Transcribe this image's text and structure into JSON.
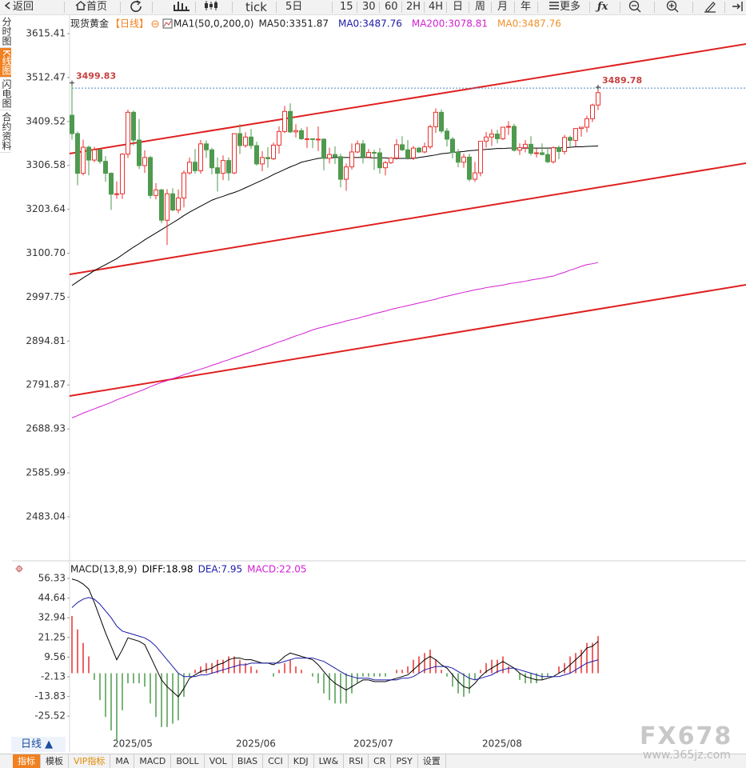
{
  "toolbar": {
    "items": [
      "返回",
      "首页",
      "tick",
      "5日",
      "15",
      "30",
      "60",
      "2H",
      "4H",
      "日",
      "周",
      "月",
      "年",
      "更多",
      "ƒx"
    ]
  },
  "sidebar": {
    "tabs": [
      "分时图",
      "K线图",
      "闪电图",
      "合约资料"
    ]
  },
  "chart_data": [
    {
      "type": "candlestick",
      "title": "现货黄金",
      "period": "【日线】",
      "indicator": "MA1(50,0,200,0)",
      "up_color": "#e8312f",
      "down_color": "#4e9a4e",
      "categories": [
        null,
        null,
        null,
        null,
        null,
        null,
        null,
        "2025/05",
        null,
        null,
        null,
        null,
        null,
        null,
        null,
        null,
        null,
        null,
        null,
        null,
        null,
        null,
        null,
        null,
        null,
        null,
        null,
        null,
        null,
        "2025/06",
        null,
        null,
        null,
        null,
        null,
        null,
        null,
        null,
        null,
        null,
        null,
        null,
        null,
        null,
        null,
        null,
        null,
        null,
        null,
        null,
        "2025/07",
        null,
        null,
        null,
        null,
        null,
        null,
        null,
        null,
        null,
        null,
        null,
        null,
        null,
        null,
        null,
        null,
        null,
        null,
        null,
        null,
        null,
        null,
        "2025/08",
        null,
        null,
        null,
        null,
        null,
        null,
        null,
        null,
        null,
        null,
        null,
        null,
        null,
        null,
        null,
        null,
        null,
        null,
        null,
        null,
        null
      ],
      "open": [
        3424,
        3381,
        3288,
        3349,
        3319,
        3343,
        3316,
        3288,
        3239,
        3240,
        3333,
        3431,
        3366,
        3306,
        3325,
        3236,
        3249,
        3178,
        3240,
        3202,
        3230,
        3289,
        3314,
        3294,
        3357,
        3343,
        3301,
        3288,
        3318,
        3289,
        3381,
        3353,
        3373,
        3353,
        3310,
        3325,
        3322,
        3354,
        3386,
        3433,
        3385,
        3388,
        3369,
        3369,
        3368,
        3368,
        3323,
        3332,
        3327,
        3274,
        3303,
        3338,
        3357,
        3326,
        3337,
        3336,
        3301,
        3313,
        3324,
        3355,
        3343,
        3324,
        3347,
        3338,
        3350,
        3397,
        3431,
        3387,
        3368,
        3337,
        3314,
        3326,
        3274,
        3289,
        3363,
        3373,
        3380,
        3369,
        3396,
        3398,
        3342,
        3348,
        3356,
        3335,
        3336,
        3332,
        3315,
        3348,
        3339,
        3372,
        3365,
        3393,
        3396,
        3416,
        3448
      ],
      "high": [
        3499.83,
        3386,
        3367,
        3353,
        3350,
        3345,
        3328,
        3290,
        3269,
        3335,
        3437,
        3435,
        3415,
        3342,
        3329,
        3265,
        3252,
        3251,
        3253,
        3250,
        3295,
        3325,
        3345,
        3366,
        3365,
        3348,
        3325,
        3330,
        3325,
        3382,
        3403,
        3384,
        3392,
        3362,
        3340,
        3349,
        3360,
        3398,
        3446,
        3452,
        3403,
        3394,
        3397,
        3370,
        3398,
        3370,
        3348,
        3351,
        3334,
        3311,
        3358,
        3365,
        3366,
        3345,
        3343,
        3347,
        3317,
        3326,
        3368,
        3375,
        3366,
        3352,
        3350,
        3360,
        3402,
        3440,
        3438,
        3394,
        3373,
        3345,
        3334,
        3334,
        3315,
        3363,
        3385,
        3391,
        3390,
        3397,
        3410,
        3404,
        3358,
        3366,
        3375,
        3346,
        3358,
        3345,
        3351,
        3353,
        3378,
        3376,
        3394,
        3397,
        3423,
        3451,
        3489.78
      ],
      "low": [
        3367,
        3260,
        3283,
        3283,
        3314,
        3310,
        3268,
        3202,
        3228,
        3228,
        3324,
        3353,
        3298,
        3289,
        3229,
        3227,
        3171,
        3120,
        3199,
        3194,
        3208,
        3285,
        3287,
        3287,
        3324,
        3286,
        3245,
        3272,
        3271,
        3286,
        3333,
        3348,
        3345,
        3306,
        3293,
        3301,
        3319,
        3334,
        3382,
        3382,
        3372,
        3366,
        3347,
        3347,
        3340,
        3295,
        3311,
        3310,
        3255,
        3247,
        3297,
        3335,
        3311,
        3324,
        3296,
        3287,
        3283,
        3310,
        3320,
        3340,
        3320,
        3319,
        3336,
        3335,
        3345,
        3383,
        3382,
        3351,
        3323,
        3302,
        3301,
        3269,
        3268,
        3281,
        3348,
        3352,
        3358,
        3366,
        3378,
        3339,
        3331,
        3337,
        3330,
        3325,
        3330,
        3312,
        3311,
        3321,
        3332,
        3351,
        3351,
        3374,
        3384,
        3408,
        3436
      ],
      "close": [
        3381,
        3288,
        3349,
        3319,
        3343,
        3316,
        3288,
        3239,
        3240,
        3333,
        3431,
        3366,
        3306,
        3325,
        3236,
        3249,
        3178,
        3240,
        3202,
        3230,
        3289,
        3314,
        3294,
        3357,
        3343,
        3301,
        3288,
        3318,
        3289,
        3381,
        3353,
        3373,
        3353,
        3310,
        3325,
        3322,
        3354,
        3386,
        3433,
        3385,
        3388,
        3369,
        3369,
        3368,
        3368,
        3323,
        3332,
        3327,
        3274,
        3303,
        3338,
        3357,
        3326,
        3337,
        3336,
        3301,
        3313,
        3324,
        3355,
        3343,
        3324,
        3347,
        3338,
        3350,
        3397,
        3431,
        3387,
        3368,
        3337,
        3314,
        3326,
        3274,
        3289,
        3363,
        3373,
        3380,
        3369,
        3396,
        3398,
        3342,
        3348,
        3356,
        3335,
        3336,
        3332,
        3315,
        3348,
        3339,
        3372,
        3365,
        3393,
        3396,
        3416,
        3448,
        3477
      ],
      "series": [
        {
          "name": "MA50:3351.87",
          "color": "#000000",
          "values": [
            3025,
            3034,
            3043,
            3051,
            3060,
            3067,
            3074,
            3081,
            3088,
            3097,
            3106,
            3115,
            3123,
            3132,
            3140,
            3148,
            3156,
            3164,
            3172,
            3180,
            3189,
            3197,
            3204,
            3211,
            3218,
            3225,
            3230,
            3234,
            3239,
            3243,
            3248,
            3254,
            3260,
            3266,
            3272,
            3278,
            3285,
            3291,
            3297,
            3303,
            3308,
            3314,
            3317,
            3320,
            3323,
            3324,
            3324,
            3325,
            3325,
            3325,
            3325,
            3325,
            3325,
            3325,
            3324,
            3324,
            3324,
            3323,
            3323,
            3323,
            3323,
            3323,
            3325,
            3327,
            3329,
            3331,
            3334,
            3335,
            3337,
            3338,
            3339,
            3341,
            3342,
            3343,
            3344,
            3345,
            3346,
            3346,
            3347,
            3347,
            3347,
            3347,
            3347,
            3347,
            3347,
            3347,
            3347,
            3348,
            3348,
            3349,
            3350,
            3350,
            3351,
            3351.4,
            3351.87
          ]
        },
        {
          "name": "MA200:3078.81",
          "color": "#d21ed2",
          "values": [
            2715,
            2720,
            2726,
            2731,
            2736,
            2741,
            2746,
            2751,
            2757,
            2762,
            2767,
            2772,
            2777,
            2782,
            2788,
            2793,
            2798,
            2802,
            2807,
            2811,
            2816,
            2820,
            2825,
            2829,
            2833,
            2838,
            2842,
            2847,
            2851,
            2856,
            2860,
            2865,
            2869,
            2874,
            2879,
            2883,
            2888,
            2893,
            2897,
            2902,
            2907,
            2911,
            2916,
            2921,
            2925,
            2928,
            2932,
            2935,
            2938,
            2942,
            2945,
            2948,
            2952,
            2955,
            2959,
            2962,
            2965,
            2969,
            2972,
            2975,
            2978,
            2981,
            2984,
            2987,
            2990,
            2993,
            2997,
            3000,
            3003,
            3006,
            3009,
            3012,
            3015,
            3017,
            3020,
            3022,
            3024,
            3026,
            3029,
            3031,
            3033,
            3035,
            3038,
            3040,
            3042,
            3045,
            3047,
            3052,
            3056,
            3061,
            3065,
            3070,
            3074,
            3076,
            3078.81
          ]
        }
      ],
      "legend_extra": [
        {
          "text": "MA0:3487.76",
          "color": "#1a1aa8"
        },
        {
          "text": "MA0:3487.76",
          "color": "#f0902a"
        }
      ],
      "price_line": 3487.76,
      "trendlines": [
        {
          "color": "#e02020",
          "x": [
            -0.43,
            120.43
          ],
          "y": [
            3334.2,
            3591.0
          ]
        },
        {
          "color": "#e02020",
          "x": [
            -0.43,
            120.43
          ],
          "y": [
            3051.0,
            3311.7
          ]
        },
        {
          "color": "#e02020",
          "x": [
            -0.43,
            120.43
          ],
          "y": [
            2766.0,
            3026.7
          ]
        }
      ],
      "ylim": [
        2381.7,
        3660.4
      ],
      "yticks": [
        3615.41,
        3512.47,
        3409.52,
        3306.58,
        3203.64,
        {
          "value": 3100.7,
          "label": "3100.70"
        },
        2997.75,
        2894.81,
        2791.87,
        2688.93,
        2585.99,
        2483.04
      ],
      "grid": false
    },
    {
      "type": "macd",
      "title": "MACD(13,8,9)",
      "up_color": "#e8312f",
      "down_color": "#4e9a4e",
      "series": [
        {
          "name": "DIFF:18.98",
          "color": "#000000",
          "values": [
            56,
            55,
            53,
            50,
            42,
            33,
            24,
            16,
            8,
            14,
            21,
            20,
            19,
            17,
            10,
            3,
            -4,
            -8,
            -11,
            -14,
            -9,
            -3,
            -1,
            1,
            2,
            3,
            5,
            6,
            8,
            9,
            9,
            8,
            8,
            7,
            6,
            6,
            5,
            7,
            10,
            12,
            11,
            10,
            9,
            8,
            5,
            1,
            -3,
            -6,
            -8,
            -10,
            -8,
            -6,
            -4,
            -4,
            -5,
            -5,
            -5,
            -4,
            -3,
            -2,
            -1,
            2,
            5,
            8,
            10,
            8,
            5,
            3,
            -1,
            -5,
            -8,
            -9,
            -6,
            -2,
            1,
            3,
            5,
            7,
            5,
            3,
            0,
            -2,
            -3,
            -4,
            -4,
            -3,
            -2,
            0,
            2,
            5,
            8,
            11,
            15,
            16,
            18.98
          ]
        },
        {
          "name": "DEA:7.95",
          "color": "#1a1aa8",
          "values": [
            39,
            42,
            44,
            45,
            44,
            41,
            37,
            33,
            28,
            25,
            24,
            23,
            22,
            21,
            19,
            16,
            12,
            8,
            4,
            0,
            -2,
            -2,
            -2,
            -1,
            -1,
            0,
            1,
            2,
            3,
            4,
            5,
            5,
            6,
            6,
            6,
            6,
            6,
            6,
            7,
            8,
            9,
            9,
            9,
            9,
            8,
            7,
            5,
            3,
            1,
            -1,
            -2,
            -3,
            -3,
            -3,
            -4,
            -4,
            -4,
            -4,
            -4,
            -3,
            -3,
            -2,
            0,
            2,
            3,
            4,
            4,
            4,
            3,
            1,
            -1,
            -3,
            -4,
            -3,
            -2,
            -1,
            1,
            2,
            3,
            3,
            2,
            1,
            0,
            -1,
            -2,
            -2,
            -2,
            -2,
            -1,
            0,
            2,
            4,
            6,
            7,
            7.95
          ]
        },
        {
          "name": "MACD:22.05",
          "color": "#d21ed2",
          "bars": true,
          "values": [
            34,
            26,
            18,
            10,
            -4,
            -16,
            -26,
            -34,
            -40,
            -22,
            -6,
            -6,
            -6,
            -8,
            -18,
            -26,
            -32,
            -32,
            -30,
            -28,
            -14,
            -2,
            2,
            4,
            6,
            6,
            8,
            8,
            10,
            10,
            8,
            6,
            4,
            2,
            0,
            0,
            -2,
            2,
            6,
            8,
            4,
            2,
            0,
            -2,
            -6,
            -12,
            -16,
            -18,
            -18,
            -18,
            -12,
            -6,
            -2,
            -2,
            -2,
            -2,
            -2,
            0,
            2,
            2,
            4,
            8,
            10,
            12,
            14,
            8,
            2,
            -2,
            -8,
            -12,
            -14,
            -12,
            -4,
            2,
            6,
            8,
            8,
            10,
            4,
            0,
            -4,
            -6,
            -6,
            -6,
            -4,
            -2,
            0,
            4,
            6,
            10,
            12,
            14,
            18,
            18,
            22.05
          ]
        }
      ],
      "ylim": [
        -39.7,
        64.9
      ],
      "yticks": [
        56.33,
        44.64,
        32.94,
        21.25,
        9.56,
        -2.13,
        -13.83,
        -25.52
      ]
    }
  ],
  "footer": {
    "period": "日线 ▲",
    "tabs": [
      "指标",
      "模板",
      "VIP指标",
      "MA",
      "MACD",
      "BOLL",
      "VOL",
      "BIAS",
      "CCI",
      "KDJ",
      "LW&",
      "RSI",
      "CR",
      "PSY",
      "设置"
    ]
  },
  "watermark": {
    "logo": "FX678",
    "url": "www.365jz.com"
  }
}
